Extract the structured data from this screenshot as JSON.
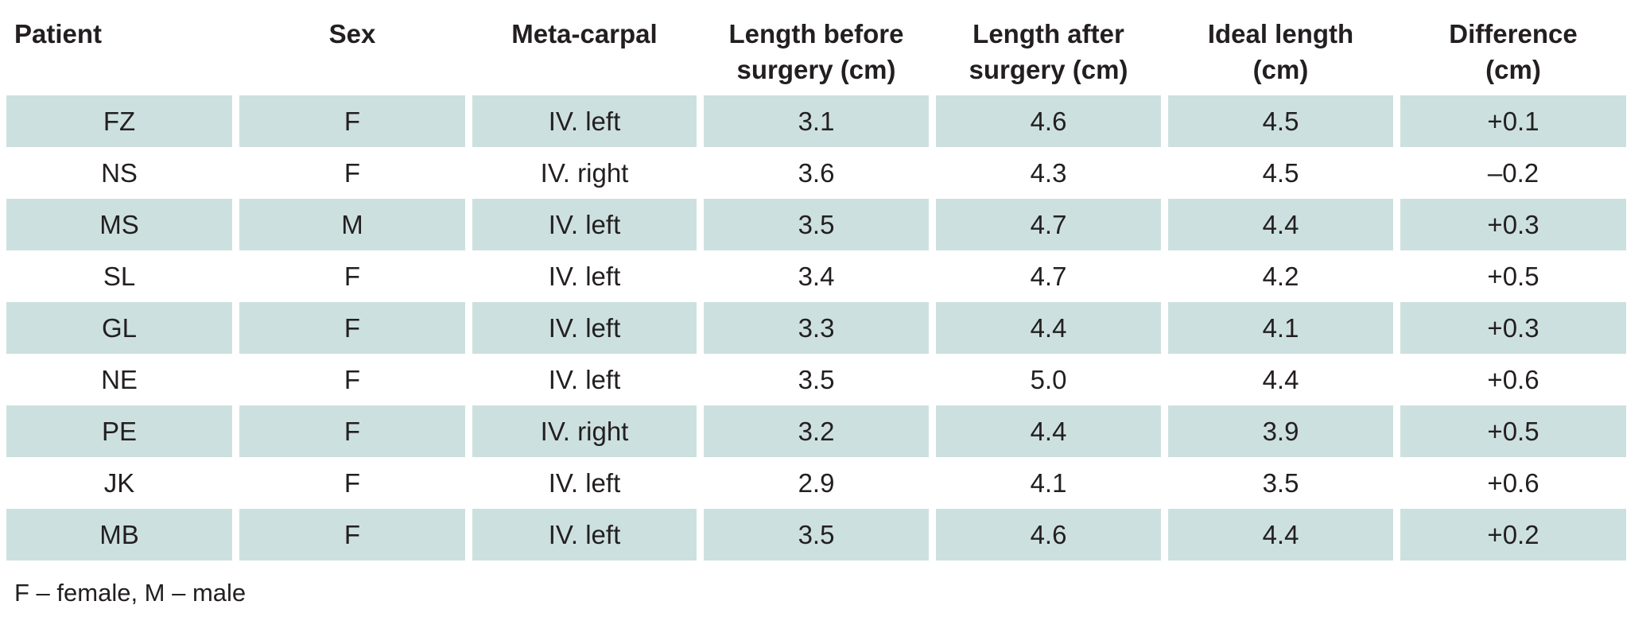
{
  "table": {
    "headers": [
      "Patient",
      "Sex",
      "Meta-carpal",
      "Length before\nsurgery (cm)",
      "Length after\nsurgery (cm)",
      "Ideal length\n(cm)",
      "Difference\n(cm)"
    ],
    "rows": [
      [
        "FZ",
        "F",
        "IV. left",
        "3.1",
        "4.6",
        "4.5",
        "+0.1"
      ],
      [
        "NS",
        "F",
        "IV. right",
        "3.6",
        "4.3",
        "4.5",
        "–0.2"
      ],
      [
        "MS",
        "M",
        "IV. left",
        "3.5",
        "4.7",
        "4.4",
        "+0.3"
      ],
      [
        "SL",
        "F",
        "IV. left",
        "3.4",
        "4.7",
        "4.2",
        "+0.5"
      ],
      [
        "GL",
        "F",
        "IV. left",
        "3.3",
        "4.4",
        "4.1",
        "+0.3"
      ],
      [
        "NE",
        "F",
        "IV. left",
        "3.5",
        "5.0",
        "4.4",
        "+0.6"
      ],
      [
        "PE",
        "F",
        "IV. right",
        "3.2",
        "4.4",
        "3.9",
        "+0.5"
      ],
      [
        "JK",
        "F",
        "IV. left",
        "2.9",
        "4.1",
        "3.5",
        "+0.6"
      ],
      [
        "MB",
        "F",
        "IV. left",
        "3.5",
        "4.6",
        "4.4",
        "+0.2"
      ]
    ],
    "shade_color": "#cde0e0"
  },
  "footnote": "F – female, M – male"
}
